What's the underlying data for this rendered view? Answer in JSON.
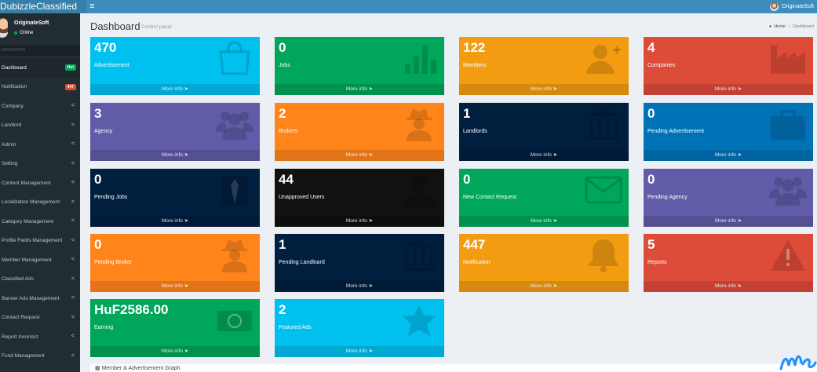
{
  "header": {
    "brand": "DubizzleClassified",
    "menu_icon": "bars-icon",
    "user_name": "OriginateSoft"
  },
  "sidebar": {
    "user_name": "OriginateSoft",
    "user_status": "Online",
    "nav_header": "NAVIGATION",
    "items": [
      {
        "label": "Dashboard",
        "badge": "Hot",
        "badge_color": "#00a65a",
        "active": true
      },
      {
        "label": "Notification",
        "badge": "447",
        "badge_color": "#dd4b39"
      },
      {
        "label": "Company",
        "chevron": "<"
      },
      {
        "label": "Landlord",
        "chevron": "<"
      },
      {
        "label": "Admin",
        "chevron": "<"
      },
      {
        "label": "Setting",
        "chevron": "<"
      },
      {
        "label": "Content Management",
        "chevron": "<"
      },
      {
        "label": "Localization Management",
        "chevron": "<"
      },
      {
        "label": "Category Management",
        "chevron": "<"
      },
      {
        "label": "Profile Fields Management",
        "chevron": "<"
      },
      {
        "label": "Member Management",
        "chevron": "<"
      },
      {
        "label": "Classified Ads",
        "chevron": "<"
      },
      {
        "label": "Banner Ads Management",
        "chevron": "<"
      },
      {
        "label": "Contact Request",
        "chevron": "<"
      },
      {
        "label": "Report Incorrect",
        "chevron": "<"
      },
      {
        "label": "Fund Management",
        "chevron": "<"
      }
    ]
  },
  "content": {
    "title": "Dashboard",
    "subtitle": "Control panel",
    "breadcrumb": {
      "home": "Home",
      "sep": ">",
      "current": "Dashboard"
    }
  },
  "boxes": [
    {
      "value": "470",
      "label": "Advertisement",
      "more": "More info",
      "color": "#00c0ef",
      "icon": "shopping-bag-icon"
    },
    {
      "value": "0",
      "label": "Jobs",
      "more": "More info",
      "color": "#00a65a",
      "icon": "bar-chart-icon"
    },
    {
      "value": "122",
      "label": "Members",
      "more": "More info",
      "color": "#f39c12",
      "icon": "user-plus-icon"
    },
    {
      "value": "4",
      "label": "Companies",
      "more": "More info",
      "color": "#dd4b39",
      "icon": "factory-icon"
    },
    {
      "value": "3",
      "label": "Agency",
      "more": "More info",
      "color": "#605ca8",
      "icon": "users-icon"
    },
    {
      "value": "2",
      "label": "Brokers",
      "more": "More info",
      "color": "#ff851b",
      "icon": "user-secret-icon"
    },
    {
      "value": "1",
      "label": "Landlords",
      "more": "More info",
      "color": "#001f3f",
      "icon": "bank-icon"
    },
    {
      "value": "0",
      "label": "Pending Advertisement",
      "more": "More info",
      "color": "#0073b7",
      "icon": "briefcase-icon"
    },
    {
      "value": "0",
      "label": "Pending Jobs",
      "more": "More info",
      "color": "#001f3f",
      "icon": "suit-icon"
    },
    {
      "value": "44",
      "label": "Unapproved Users",
      "more": "More info",
      "color": "#111111",
      "icon": "user-icon"
    },
    {
      "value": "0",
      "label": "New Contact Request",
      "more": "More info",
      "color": "#00a65a",
      "icon": "envelope-icon"
    },
    {
      "value": "0",
      "label": "Pending Agency",
      "more": "More info",
      "color": "#605ca8",
      "icon": "users-icon"
    },
    {
      "value": "0",
      "label": "Pending Broker",
      "more": "More info",
      "color": "#ff851b",
      "icon": "user-secret-icon"
    },
    {
      "value": "1",
      "label": "Pending Landloard",
      "more": "More info",
      "color": "#001f3f",
      "icon": "bank-icon"
    },
    {
      "value": "447",
      "label": "Notification",
      "more": "More info",
      "color": "#f39c12",
      "icon": "bell-icon"
    },
    {
      "value": "5",
      "label": "Reports",
      "more": "More info",
      "color": "#dd4b39",
      "icon": "warning-icon"
    },
    {
      "value": "HuF2586.00",
      "label": "Earning",
      "more": "More info",
      "color": "#00a65a",
      "icon": "money-icon"
    },
    {
      "value": "2",
      "label": "Featured Ads",
      "more": "More info",
      "color": "#00c0ef",
      "icon": "star-icon"
    }
  ],
  "graph_section": {
    "title": "Member & Advertisement Graph"
  }
}
